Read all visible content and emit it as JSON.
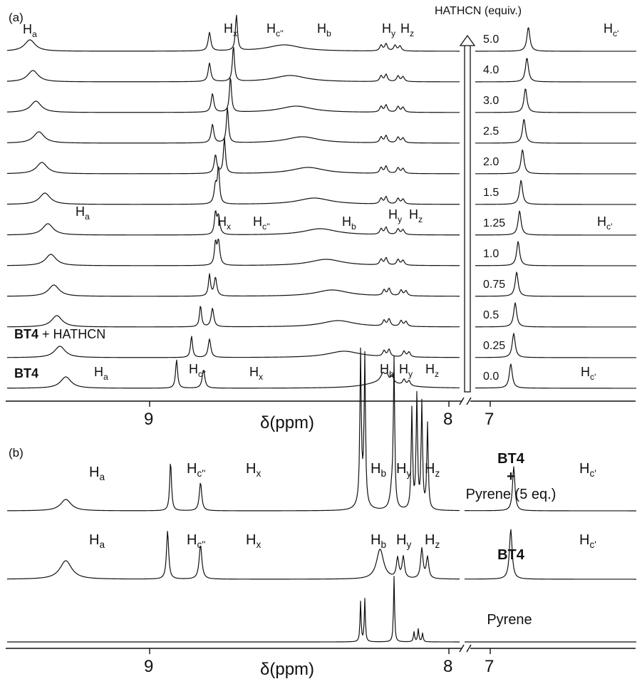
{
  "colors": {
    "black": "#111111",
    "blue": "#3a4fa3",
    "red": "#e32626"
  },
  "panel_a": {
    "panel_label": "(a)",
    "xlabel": "δ(ppm)",
    "tick_labels": [
      {
        "text": "9",
        "v": 9
      },
      {
        "text": "8",
        "v": 8
      },
      {
        "text": "7",
        "v": 7
      }
    ],
    "equiv_header": "HATHCN (equiv.)",
    "equiv_values": [
      "5.0",
      "4.0",
      "3.0",
      "2.5",
      "2.0",
      "1.5",
      "1.25",
      "1.0",
      "0.75",
      "0.5",
      "0.25",
      "0.0"
    ],
    "left_labels": [
      {
        "bold": "BT4",
        "rest": " + HATHCN",
        "row": 10
      },
      {
        "bold": "BT4",
        "rest": "",
        "row": 11
      }
    ]
  },
  "panel_b": {
    "panel_label": "(b)",
    "xlabel": "δ(ppm)",
    "tick_labels": [
      {
        "text": "9",
        "v": 9
      },
      {
        "text": "8",
        "v": 8
      },
      {
        "text": "7",
        "v": 7
      }
    ],
    "right_labels": [
      {
        "lines": [
          "BT4",
          "+",
          "Pyrene (5 eq.)"
        ],
        "bold": [
          true,
          true,
          false
        ]
      },
      {
        "lines": [
          "BT4"
        ],
        "bold": [
          true
        ]
      },
      {
        "lines": [
          "Pyrene"
        ],
        "bold": [
          false
        ]
      }
    ]
  },
  "peak_labels_a": [
    {
      "base": "H",
      "sub": "a",
      "color": "black",
      "at": "top-Ha"
    },
    {
      "base": "H",
      "sub": "x",
      "color": "black",
      "at": "top-Hx"
    },
    {
      "base": "H",
      "sub": "c''",
      "color": "blue",
      "at": "top-Hc2"
    },
    {
      "base": "H",
      "sub": "b",
      "color": "black",
      "at": "top-Hb"
    },
    {
      "base": "H",
      "sub": "y",
      "color": "black",
      "at": "top-Hy"
    },
    {
      "base": "H",
      "sub": "z",
      "color": "black",
      "at": "top-Hz"
    },
    {
      "base": "H",
      "sub": "c'",
      "color": "red",
      "at": "top-Hc1"
    },
    {
      "base": "H",
      "sub": "a",
      "color": "black",
      "at": "mid-Ha"
    },
    {
      "base": "H",
      "sub": "x",
      "color": "black",
      "at": "mid-Hx"
    },
    {
      "base": "H",
      "sub": "c''",
      "color": "blue",
      "at": "mid-Hc2"
    },
    {
      "base": "H",
      "sub": "b",
      "color": "black",
      "at": "mid-Hb"
    },
    {
      "base": "H",
      "sub": "y",
      "color": "black",
      "at": "mid-Hy"
    },
    {
      "base": "H",
      "sub": "z",
      "color": "black",
      "at": "mid-Hz"
    },
    {
      "base": "H",
      "sub": "c'",
      "color": "red",
      "at": "mid-Hc1"
    },
    {
      "base": "H",
      "sub": "a",
      "color": "black",
      "at": "bot-Ha"
    },
    {
      "base": "H",
      "sub": "c''",
      "color": "blue",
      "at": "bot-Hc2"
    },
    {
      "base": "H",
      "sub": "x",
      "color": "black",
      "at": "bot-Hx"
    },
    {
      "base": "H",
      "sub": "b",
      "color": "black",
      "at": "bot-Hb"
    },
    {
      "base": "H",
      "sub": "y",
      "color": "black",
      "at": "bot-Hy"
    },
    {
      "base": "H",
      "sub": "z",
      "color": "black",
      "at": "bot-Hz"
    },
    {
      "base": "H",
      "sub": "c'",
      "color": "red",
      "at": "bot-Hc1"
    }
  ],
  "peak_labels_b": [
    {
      "base": "H",
      "sub": "a",
      "color": "black",
      "at": "b1-Ha"
    },
    {
      "base": "H",
      "sub": "c''",
      "color": "blue",
      "at": "b1-Hc2"
    },
    {
      "base": "H",
      "sub": "x",
      "color": "black",
      "at": "b1-Hx"
    },
    {
      "base": "H",
      "sub": "b",
      "color": "black",
      "at": "b1-Hb"
    },
    {
      "base": "H",
      "sub": "y",
      "color": "black",
      "at": "b1-Hy"
    },
    {
      "base": "H",
      "sub": "z",
      "color": "black",
      "at": "b1-Hz"
    },
    {
      "base": "H",
      "sub": "c'",
      "color": "red",
      "at": "b1-Hc1"
    },
    {
      "base": "H",
      "sub": "a",
      "color": "black",
      "at": "b2-Ha"
    },
    {
      "base": "H",
      "sub": "c''",
      "color": "blue",
      "at": "b2-Hc2"
    },
    {
      "base": "H",
      "sub": "x",
      "color": "black",
      "at": "b2-Hx"
    },
    {
      "base": "H",
      "sub": "b",
      "color": "black",
      "at": "b2-Hb"
    },
    {
      "base": "H",
      "sub": "y",
      "color": "black",
      "at": "b2-Hy"
    },
    {
      "base": "H",
      "sub": "z",
      "color": "black",
      "at": "b2-Hz"
    },
    {
      "base": "H",
      "sub": "c'",
      "color": "red",
      "at": "b2-Hc1"
    }
  ],
  "chart_data": [
    {
      "type": "line",
      "panel": "(a)",
      "xlabel": "δ(ppm)",
      "x_axis_reversed": true,
      "x_axis_break": "between 8 and 7 ppm",
      "legend_title": "HATHCN (equiv.)",
      "series": [
        {
          "name": "5.0",
          "peaks": {
            "Ha": 9.4,
            "Hx": 8.8,
            "Hc''": 8.71,
            "Hy": 8.21,
            "Hz": 8.18,
            "Hc'": 6.74
          }
        },
        {
          "name": "4.0",
          "peaks": {
            "Ha": 9.39,
            "Hx": 8.8,
            "Hc''": 8.72,
            "Hy": 8.21,
            "Hz": 8.17,
            "Hc'": 6.75
          }
        },
        {
          "name": "3.0",
          "peaks": {
            "Ha": 9.38,
            "Hx": 8.79,
            "Hc''": 8.73,
            "Hy": 8.21,
            "Hz": 8.17,
            "Hc'": 6.76
          }
        },
        {
          "name": "2.5",
          "peaks": {
            "Ha": 9.37,
            "Hx": 8.79,
            "Hc''": 8.74,
            "Hy": 8.21,
            "Hz": 8.17,
            "Hc'": 6.77
          }
        },
        {
          "name": "2.0",
          "peaks": {
            "Ha": 9.36,
            "Hx": 8.78,
            "Hc''": 8.75,
            "Hy": 8.21,
            "Hz": 8.17,
            "Hc'": 6.78
          }
        },
        {
          "name": "1.5",
          "peaks": {
            "Ha": 9.35,
            "Hx": 8.78,
            "Hc''": 8.77,
            "Hy": 8.21,
            "Hz": 8.17,
            "Hc'": 6.79
          }
        },
        {
          "name": "1.25",
          "peaks": {
            "Ha": 9.34,
            "Hx": 8.77,
            "Hc''": 8.78,
            "Hy": 8.21,
            "Hz": 8.17,
            "Hc'": 6.8
          }
        },
        {
          "name": "1.0",
          "peaks": {
            "Ha": 9.33,
            "Hx": 8.77,
            "Hc''": 8.78,
            "Hy": 8.21,
            "Hz": 8.17,
            "Hc'": 6.81
          }
        },
        {
          "name": "0.75",
          "peaks": {
            "Ha": 9.32,
            "Hx": 8.78,
            "Hc''": 8.8,
            "Hy": 8.2,
            "Hz": 8.16,
            "Hc'": 6.82
          }
        },
        {
          "name": "0.5",
          "peaks": {
            "Ha": 9.31,
            "Hx": 8.79,
            "Hc''": 8.83,
            "Hy": 8.2,
            "Hz": 8.16,
            "Hc'": 6.83
          }
        },
        {
          "name": "0.25",
          "peaks": {
            "Ha": 9.3,
            "Hx": 8.8,
            "Hc''": 8.86,
            "Hy": 8.2,
            "Hz": 8.15,
            "Hc'": 6.84
          }
        },
        {
          "name": "0.0",
          "peaks": {
            "Ha": 9.28,
            "Hx": 8.82,
            "Hc''": 8.91,
            "Hb": 8.22,
            "Hy": 8.19,
            "Hz": 8.15,
            "Hc'": 6.86
          }
        }
      ]
    },
    {
      "type": "line",
      "panel": "(b)",
      "xlabel": "δ(ppm)",
      "x_axis_reversed": true,
      "x_axis_break": "between 8 and 7 ppm",
      "series": [
        {
          "name": "BT4 + Pyrene (5 eq.)",
          "peaks": {
            "Ha": 9.28,
            "Hc''": 8.93,
            "Hx": 8.83,
            "Hb": 8.23,
            "Hy": 8.19,
            "Hz": 8.13,
            "Hc'": 6.84
          }
        },
        {
          "name": "BT4",
          "peaks": {
            "Ha": 9.28,
            "Hc''": 8.94,
            "Hx": 8.83,
            "Hb": 8.23,
            "Hy": 8.2,
            "Hz": 8.14,
            "Hc'": 6.86
          }
        },
        {
          "name": "Pyrene",
          "peaks": {
            "p1": 8.31,
            "p2": 8.22,
            "p3": 8.16
          }
        }
      ]
    }
  ]
}
